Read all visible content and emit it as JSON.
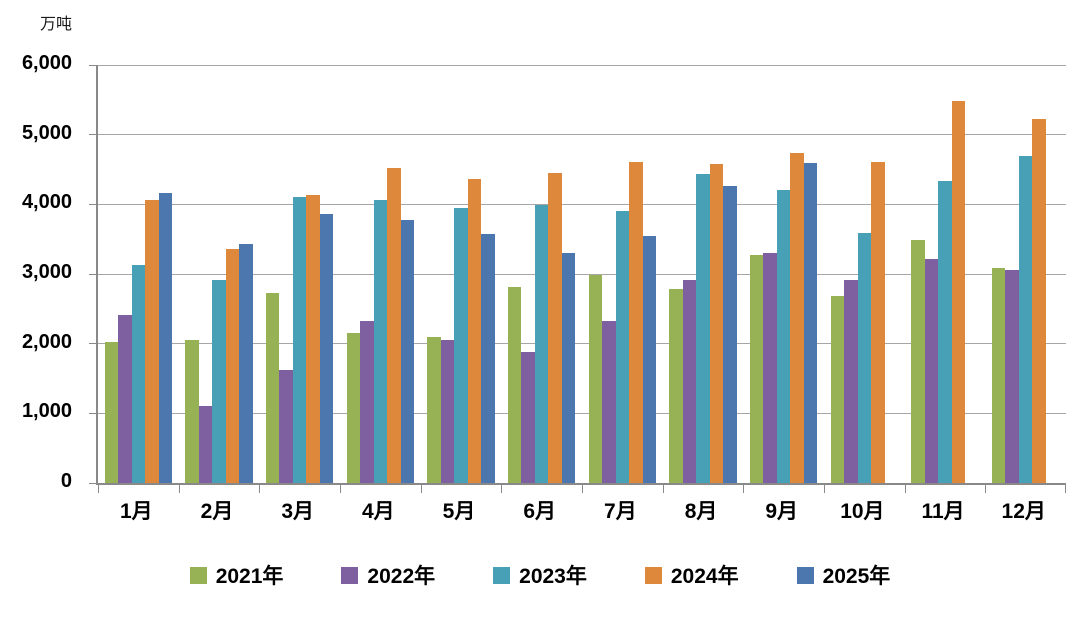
{
  "chart_data": {
    "type": "bar",
    "title": "",
    "ylabel": "万吨",
    "xlabel": "",
    "ylim": [
      0,
      6000
    ],
    "ytick_interval": 1000,
    "grid": true,
    "legend_position": "bottom",
    "axis_color": "#898989",
    "gridline_color": "#a6a6a6",
    "categories": [
      "1月",
      "2月",
      "3月",
      "4月",
      "5月",
      "6月",
      "7月",
      "8月",
      "9月",
      "10月",
      "11月",
      "12月"
    ],
    "series": [
      {
        "name": "2021年",
        "color": "#96B254",
        "values": [
          2020,
          2060,
          2730,
          2150,
          2090,
          2820,
          2990,
          2780,
          3280,
          2680,
          3490,
          3080
        ]
      },
      {
        "name": "2022年",
        "color": "#7E5FA0",
        "values": [
          2410,
          1110,
          1620,
          2330,
          2050,
          1880,
          2330,
          2920,
          3300,
          2910,
          3210,
          3060
        ]
      },
      {
        "name": "2023年",
        "color": "#47A0B5",
        "values": [
          3130,
          2920,
          4100,
          4060,
          3950,
          3990,
          3910,
          4430,
          4200,
          3590,
          4330,
          4700
        ]
      },
      {
        "name": "2024年",
        "color": "#DE883C",
        "values": [
          4060,
          3360,
          4130,
          4520,
          4360,
          4450,
          4610,
          4580,
          4740,
          4610,
          5490,
          5230
        ]
      },
      {
        "name": "2025年",
        "color": "#4C77AE",
        "values": [
          4160,
          3430,
          3860,
          3770,
          3580,
          3300,
          3550,
          4260,
          4600,
          null,
          null,
          null
        ]
      }
    ]
  }
}
